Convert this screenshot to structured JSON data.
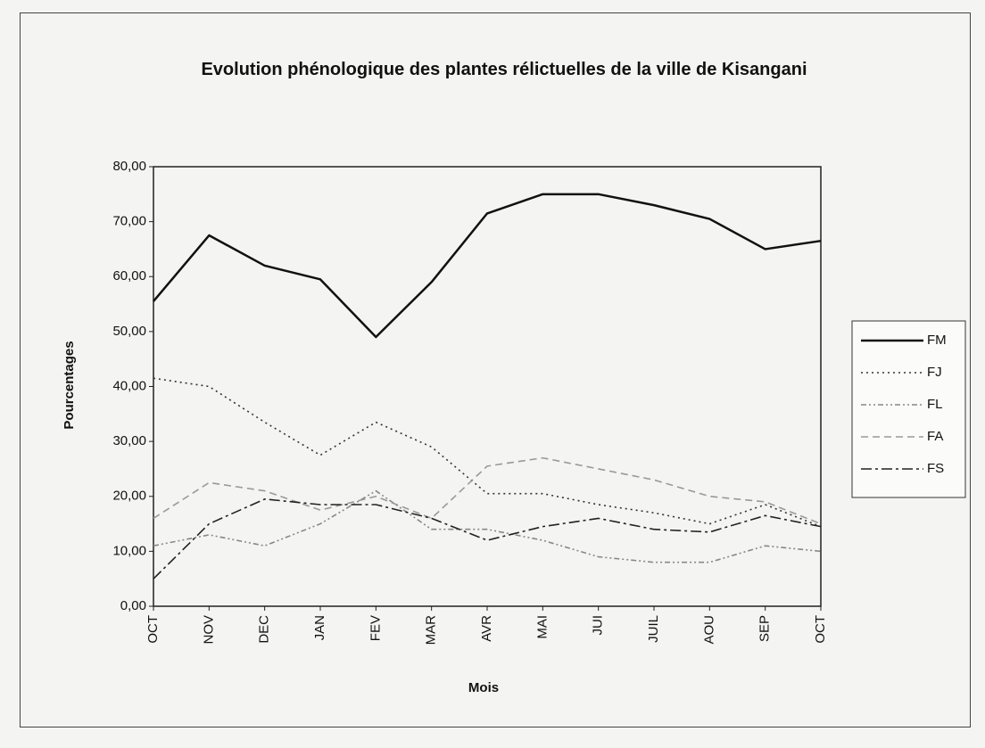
{
  "chart_data": {
    "type": "line",
    "title": "Evolution phénologique des plantes rélictuelles de la ville de Kisangani",
    "xlabel": "Mois",
    "ylabel": "Pourcentages",
    "categories": [
      "OCT",
      "NOV",
      "DEC",
      "JAN",
      "FEV",
      "MAR",
      "AVR",
      "MAI",
      "JUI",
      "JUIL",
      "AOU",
      "SEP",
      "OCT"
    ],
    "ylim": [
      0,
      80
    ],
    "yticks": [
      {
        "value": 0,
        "label": "0,00"
      },
      {
        "value": 10,
        "label": "10,00"
      },
      {
        "value": 20,
        "label": "20,00"
      },
      {
        "value": 30,
        "label": "30,00"
      },
      {
        "value": 40,
        "label": "40,00"
      },
      {
        "value": 50,
        "label": "50,00"
      },
      {
        "value": 60,
        "label": "60,00"
      },
      {
        "value": 70,
        "label": "70,00"
      },
      {
        "value": 80,
        "label": "80,00"
      }
    ],
    "grid": false,
    "legend": "right",
    "series": [
      {
        "name": "FM",
        "color": "#111111",
        "dash": "none",
        "values": [
          55.5,
          67.5,
          62,
          59.5,
          49,
          59,
          71.5,
          75,
          75,
          73,
          70.5,
          65,
          66.5
        ]
      },
      {
        "name": "FJ",
        "color": "#333333",
        "dash": "2 4",
        "values": [
          41.5,
          40,
          33.5,
          27.5,
          33.5,
          29,
          20.5,
          20.5,
          18.5,
          17,
          15,
          18.5,
          14.5
        ]
      },
      {
        "name": "FL",
        "color": "#888888",
        "dash": "6 3 2 3 2 3",
        "values": [
          11,
          13,
          11,
          15,
          21,
          14,
          14,
          12,
          9,
          8,
          8,
          11,
          10
        ]
      },
      {
        "name": "FA",
        "color": "#999999",
        "dash": "8 5",
        "values": [
          16,
          22.5,
          21,
          17.5,
          20,
          16,
          25.5,
          27,
          25,
          23,
          20,
          19,
          15
        ]
      },
      {
        "name": "FS",
        "color": "#222222",
        "dash": "12 4 3 4",
        "values": [
          5,
          15,
          19.5,
          18.5,
          18.5,
          16,
          12,
          14.5,
          16,
          14,
          13.5,
          16.5,
          14.5
        ]
      }
    ]
  }
}
